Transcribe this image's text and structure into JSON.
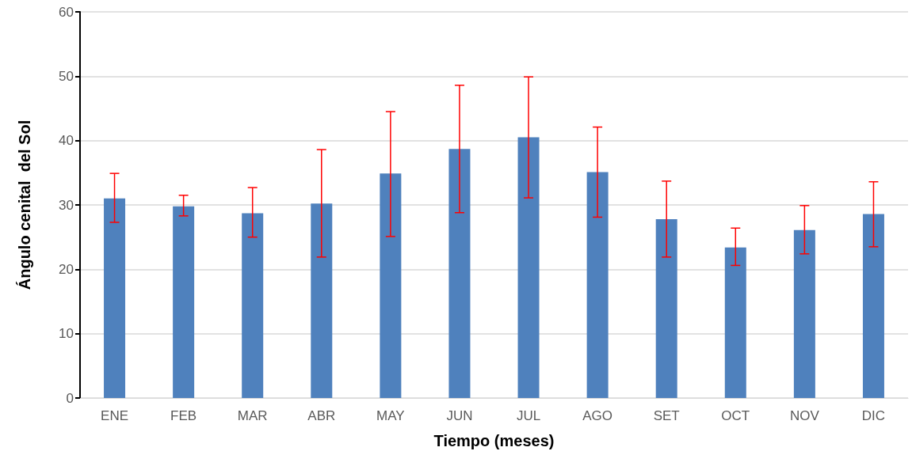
{
  "chart_data": {
    "type": "bar",
    "xlabel": "Tiempo (meses)",
    "ylabel": "Ángulo cenital  del Sol",
    "categories": [
      "ENE",
      "FEB",
      "MAR",
      "ABR",
      "MAY",
      "JUN",
      "JUL",
      "AGO",
      "SET",
      "OCT",
      "NOV",
      "DIC"
    ],
    "values": [
      31.0,
      29.8,
      28.7,
      30.2,
      34.9,
      38.7,
      40.5,
      35.1,
      27.8,
      23.4,
      26.1,
      28.6
    ],
    "errors": [
      [
        27.3,
        34.9
      ],
      [
        28.3,
        31.5
      ],
      [
        25.0,
        32.7
      ],
      [
        21.9,
        38.6
      ],
      [
        25.1,
        44.5
      ],
      [
        28.8,
        48.6
      ],
      [
        31.1,
        49.9
      ],
      [
        28.1,
        42.1
      ],
      [
        21.9,
        33.7
      ],
      [
        20.6,
        26.4
      ],
      [
        22.4,
        29.9
      ],
      [
        23.5,
        33.6
      ]
    ],
    "color": "#4f81bd",
    "ylim": [
      0,
      60
    ],
    "yticks": [
      0,
      10,
      20,
      30,
      40,
      50,
      60
    ],
    "grid": "y"
  }
}
